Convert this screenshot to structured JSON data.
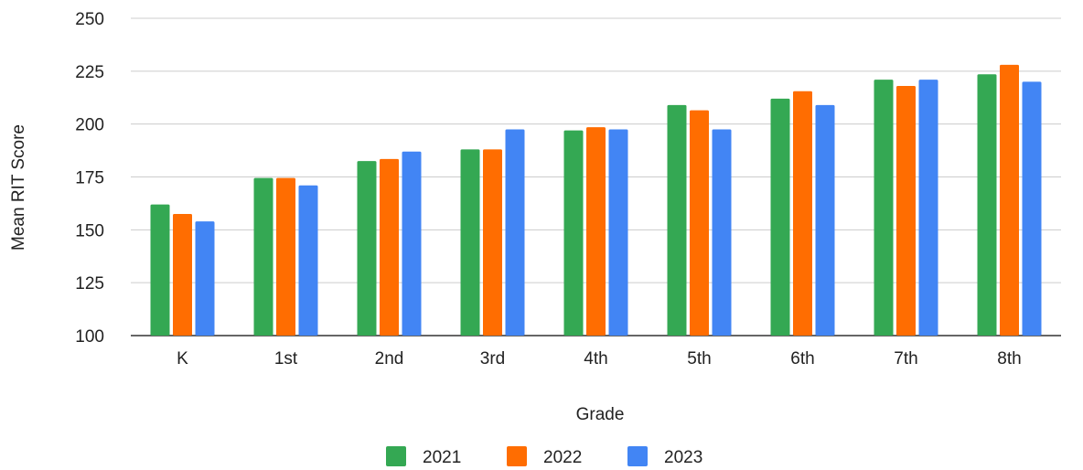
{
  "chart_data": {
    "type": "bar",
    "title": "",
    "xlabel": "Grade",
    "ylabel": "Mean RIT Score",
    "ylim": [
      100,
      250
    ],
    "yticks": [
      100,
      125,
      150,
      175,
      200,
      225,
      250
    ],
    "grid": true,
    "legend_position": "bottom",
    "categories": [
      "K",
      "1st",
      "2nd",
      "3rd",
      "4th",
      "5th",
      "6th",
      "7th",
      "8th"
    ],
    "series": [
      {
        "name": "2021",
        "color": "#34a853",
        "values": [
          162,
          174.5,
          182.5,
          188,
          197,
          209,
          212,
          221,
          223.5
        ]
      },
      {
        "name": "2022",
        "color": "#ff6d01",
        "values": [
          157.5,
          174.5,
          183.5,
          188,
          198.5,
          206.5,
          215.5,
          218,
          228
        ]
      },
      {
        "name": "2023",
        "color": "#4285f4",
        "values": [
          154,
          171,
          187,
          197.5,
          197.5,
          197.5,
          209,
          221,
          220
        ]
      }
    ]
  }
}
